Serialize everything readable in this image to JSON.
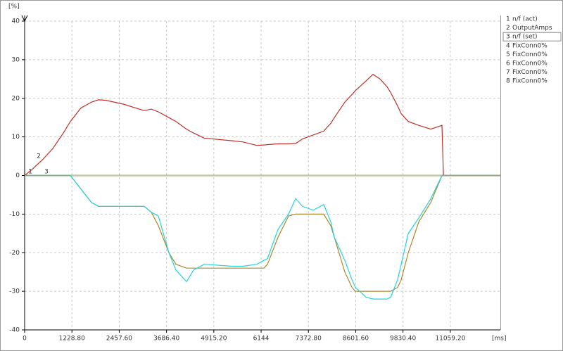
{
  "chart_data": {
    "type": "line",
    "y_unit": "[%]",
    "x_unit": "[ms]",
    "x": [
      0,
      183,
      457,
      731,
      1006,
      1189,
      1463,
      1737,
      1920,
      2103,
      2560,
      3109,
      3291,
      3474,
      3749,
      3931,
      4206,
      4389,
      4663,
      5394,
      5669,
      6034,
      6217,
      6309,
      6583,
      6857,
      7040,
      7223,
      7497,
      7771,
      7954,
      8046,
      8320,
      8503,
      8594,
      8869,
      9051,
      9234,
      9417,
      9509,
      9691,
      9783,
      9966,
      10240,
      10551,
      10843,
      10880,
      12360
    ],
    "xlim": [
      0,
      12360
    ],
    "xticks": [
      0,
      {
        "value": 1228.8,
        "label": "1228.80"
      },
      {
        "value": 2457.6,
        "label": "2457.60"
      },
      {
        "value": 3686.4,
        "label": "3686.40"
      },
      {
        "value": 4915.2,
        "label": "4915.20"
      },
      6144,
      {
        "value": 7372.8,
        "label": "7372.80"
      },
      {
        "value": 8601.6,
        "label": "8601.60"
      },
      {
        "value": 9830.4,
        "label": "9830.40"
      },
      {
        "value": 11059.2,
        "label": "11059.20"
      }
    ],
    "ylim": [
      -40,
      40
    ],
    "yticks": [
      -40,
      -30,
      -20,
      -10,
      0,
      10,
      20,
      30,
      40
    ],
    "grid": true,
    "series": [
      {
        "id": 1,
        "name": "n/f (act)",
        "color": "#22d3e0",
        "values": [
          0,
          0,
          0,
          0,
          0,
          0,
          -3.5,
          -7,
          -8,
          -8,
          -8,
          -8,
          -9.5,
          -10.5,
          -20,
          -24.5,
          -27.5,
          -24.5,
          -23,
          -23.5,
          -23.5,
          -23,
          -22,
          -21.5,
          -14,
          -10,
          -6,
          -8,
          -9,
          -7.5,
          -12,
          -16,
          -22,
          -27,
          -29,
          -31.5,
          -32,
          -32,
          -32,
          -31.5,
          -27,
          -23,
          -15,
          -11,
          -6,
          0,
          0,
          0
        ]
      },
      {
        "id": 2,
        "name": "OutputAmps",
        "color": "#c0302a",
        "values": [
          0,
          1.5,
          4,
          7,
          11,
          14,
          17.5,
          19,
          19.6,
          19.5,
          18.5,
          16.8,
          17.2,
          16.5,
          15,
          14,
          12,
          11,
          9.7,
          9,
          8.7,
          7.8,
          7.9,
          8,
          8.2,
          8.2,
          8.3,
          9.5,
          10.5,
          11.5,
          13.5,
          15,
          19,
          21,
          22,
          24.5,
          26.2,
          25,
          23,
          21.5,
          18,
          16,
          14,
          13,
          12,
          13,
          0,
          0
        ]
      },
      {
        "id": 3,
        "name": "n/f (set)",
        "color": "#b0862a",
        "values": [
          0,
          0,
          0,
          0,
          0,
          0,
          -3.5,
          -7,
          -8,
          -8,
          -8,
          -8,
          -9.5,
          -13,
          -20,
          -23,
          -24,
          -24,
          -24,
          -24,
          -24,
          -24,
          -24,
          -23,
          -16,
          -10.5,
          -10,
          -10,
          -10,
          -10,
          -13,
          -16,
          -25,
          -29,
          -30,
          -30,
          -30,
          -30,
          -30,
          -30,
          -29,
          -27,
          -20,
          -12,
          -7,
          0,
          0,
          0
        ]
      },
      {
        "id": 4,
        "name": "FixConn0%",
        "color": "#e8d020",
        "values": [
          0,
          0,
          0,
          0,
          0,
          0,
          0,
          0,
          0,
          0,
          0,
          0,
          0,
          0,
          0,
          0,
          0,
          0,
          0,
          0,
          0,
          0,
          0,
          0,
          0,
          0,
          0,
          0,
          0,
          0,
          0,
          0,
          0,
          0,
          0,
          0,
          0,
          0,
          0,
          0,
          0,
          0,
          0,
          0,
          0,
          0,
          0,
          0
        ]
      },
      {
        "id": 5,
        "name": "FixConn0%",
        "color": "#30c030",
        "values": [
          0,
          0,
          0,
          0,
          0,
          0,
          0,
          0,
          0,
          0,
          0,
          0,
          0,
          0,
          0,
          0,
          0,
          0,
          0,
          0,
          0,
          0,
          0,
          0,
          0,
          0,
          0,
          0,
          0,
          0,
          0,
          0,
          0,
          0,
          0,
          0,
          0,
          0,
          0,
          0,
          0,
          0,
          0,
          0,
          0,
          0,
          0,
          0
        ]
      },
      {
        "id": 6,
        "name": "FixConn0%",
        "color": "#2030b0",
        "values": [
          0,
          0,
          0,
          0,
          0,
          0,
          0,
          0,
          0,
          0,
          0,
          0,
          0,
          0,
          0,
          0,
          0,
          0,
          0,
          0,
          0,
          0,
          0,
          0,
          0,
          0,
          0,
          0,
          0,
          0,
          0,
          0,
          0,
          0,
          0,
          0,
          0,
          0,
          0,
          0,
          0,
          0,
          0,
          0,
          0,
          0,
          0,
          0
        ]
      },
      {
        "id": 7,
        "name": "FixConn0%",
        "color": "#b030c0",
        "values": [
          0,
          0,
          0,
          0,
          0,
          0,
          0,
          0,
          0,
          0,
          0,
          0,
          0,
          0,
          0,
          0,
          0,
          0,
          0,
          0,
          0,
          0,
          0,
          0,
          0,
          0,
          0,
          0,
          0,
          0,
          0,
          0,
          0,
          0,
          0,
          0,
          0,
          0,
          0,
          0,
          0,
          0,
          0,
          0,
          0,
          0,
          0,
          0
        ]
      },
      {
        "id": 8,
        "name": "FixConn0%",
        "color": "#909090",
        "values": [
          0,
          0,
          0,
          0,
          0,
          0,
          0,
          0,
          0,
          0,
          0,
          0,
          0,
          0,
          0,
          0,
          0,
          0,
          0,
          0,
          0,
          0,
          0,
          0,
          0,
          0,
          0,
          0,
          0,
          0,
          0,
          0,
          0,
          0,
          0,
          0,
          0,
          0,
          0,
          0,
          0,
          0,
          0,
          0,
          0,
          0,
          0,
          0
        ]
      }
    ]
  }
}
